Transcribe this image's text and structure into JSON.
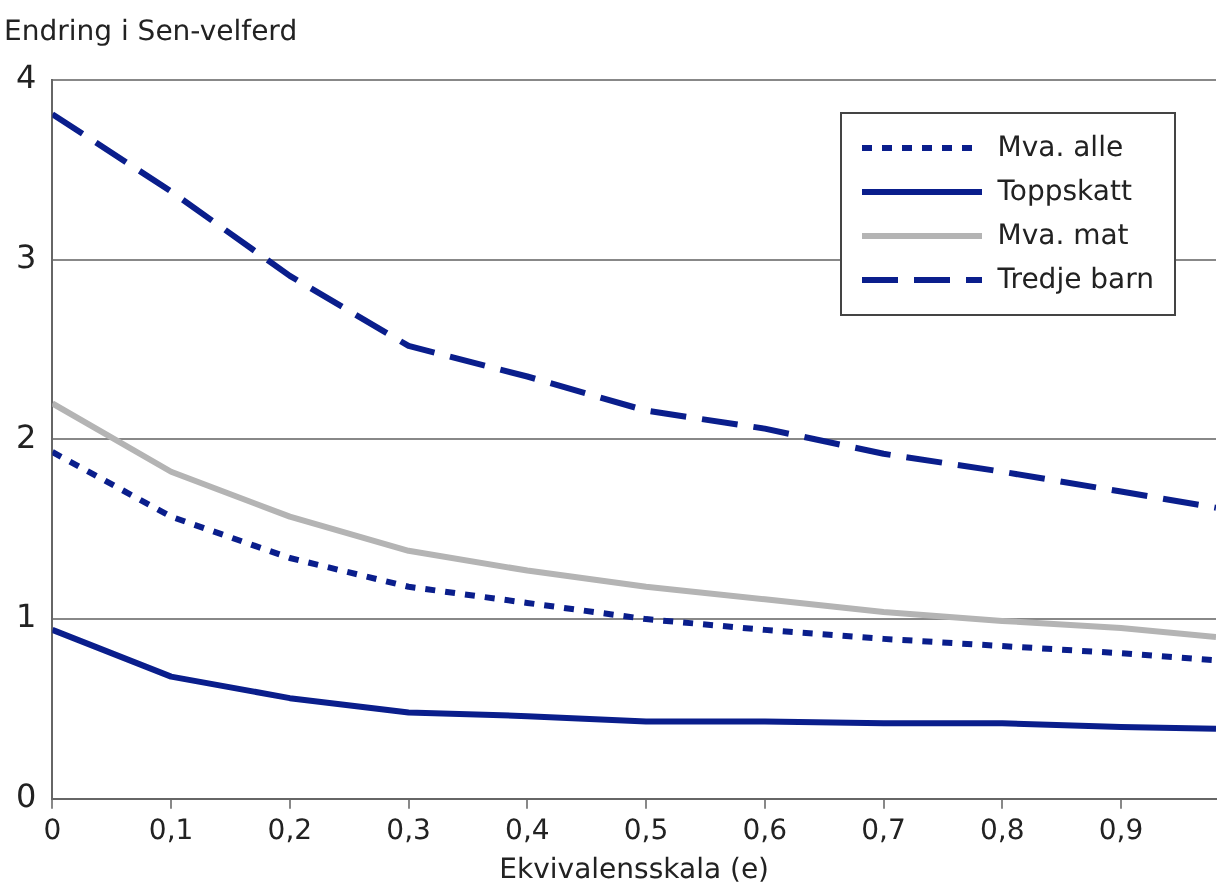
{
  "chart_data": {
    "type": "line",
    "ylabel": "Endring i Sen-velferd",
    "xlabel": "Ekvivalensskala (e)",
    "x": [
      0,
      0.1,
      0.2,
      0.3,
      0.4,
      0.5,
      0.6,
      0.7,
      0.8,
      0.9,
      0.98
    ],
    "xlim": [
      0,
      0.98
    ],
    "xticks": [
      0,
      {
        "value": 0.1,
        "label": "0,1"
      },
      {
        "value": 0.2,
        "label": "0,2"
      },
      {
        "value": 0.3,
        "label": "0,3"
      },
      {
        "value": 0.4,
        "label": "0,4"
      },
      {
        "value": 0.5,
        "label": "0,5"
      },
      {
        "value": 0.6,
        "label": "0,6"
      },
      {
        "value": 0.7,
        "label": "0,7"
      },
      {
        "value": 0.8,
        "label": "0,8"
      },
      {
        "value": 0.9,
        "label": "0,9"
      }
    ],
    "ylim": [
      0,
      4
    ],
    "yticks": [
      0,
      1,
      2,
      3,
      4
    ],
    "grid": "y",
    "legend": "top right",
    "marker": "none",
    "series": [
      {
        "name": "Mva. alle",
        "color": "#0a1e8c",
        "line_style": "dotted",
        "values": [
          1.93,
          1.57,
          1.34,
          1.18,
          1.09,
          1.0,
          0.94,
          0.89,
          0.85,
          0.81,
          0.77
        ]
      },
      {
        "name": "Toppskatt",
        "color": "#0a1e8c",
        "line_style": "solid",
        "values": [
          0.94,
          0.68,
          0.56,
          0.48,
          0.46,
          0.43,
          0.43,
          0.42,
          0.42,
          0.4,
          0.39
        ]
      },
      {
        "name": "Mva. mat",
        "color": "#b4b4b4",
        "line_style": "solid",
        "values": [
          2.2,
          1.82,
          1.57,
          1.38,
          1.27,
          1.18,
          1.11,
          1.04,
          0.99,
          0.95,
          0.9
        ]
      },
      {
        "name": "Tredje barn",
        "color": "#0a1e8c",
        "line_style": "dashed",
        "values": [
          3.81,
          3.38,
          2.91,
          2.52,
          2.35,
          2.16,
          2.06,
          1.92,
          1.82,
          1.71,
          1.62
        ]
      }
    ]
  }
}
